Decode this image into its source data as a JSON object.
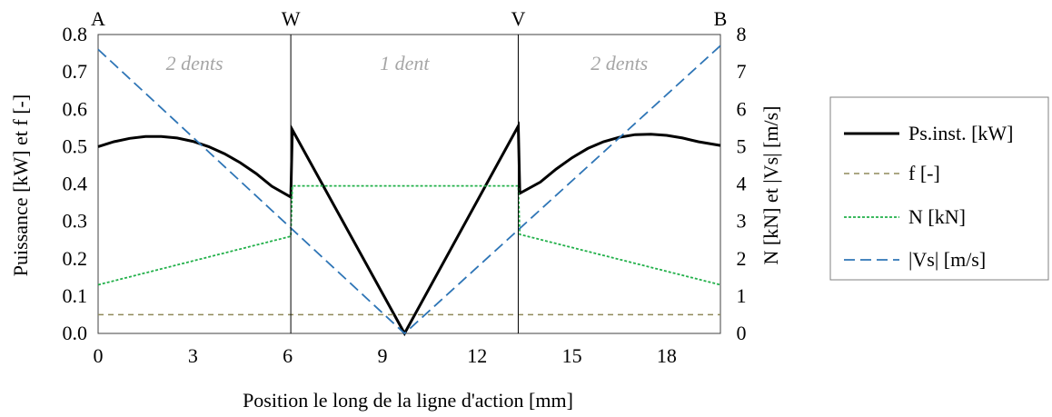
{
  "chart_data": {
    "type": "line",
    "xlabel": "Position le long de la ligne d'action [mm]",
    "ylabel_left": "Puissance [kW] et f [-]",
    "ylabel_right": "N [kN] et |Vs| [m/s]",
    "xlim": [
      0,
      19.7
    ],
    "ylim_left": [
      0,
      0.8
    ],
    "ylim_right": [
      0,
      8
    ],
    "x_ticks": [
      0,
      3,
      6,
      9,
      12,
      15,
      18
    ],
    "y_left_ticks": [
      "0.0",
      "0.1",
      "0.2",
      "0.3",
      "0.4",
      "0.5",
      "0.6",
      "0.7",
      "0.8"
    ],
    "y_right_ticks": [
      "0",
      "1",
      "2",
      "3",
      "4",
      "5",
      "6",
      "7",
      "8"
    ],
    "grid": false,
    "legend_position": "right",
    "markers": [
      {
        "label": "A",
        "x": 0
      },
      {
        "label": "W",
        "x": 6.1
      },
      {
        "label": "V",
        "x": 13.3
      },
      {
        "label": "B",
        "x": 19.7
      }
    ],
    "zones": [
      {
        "label": "2 dents",
        "x": 3.05
      },
      {
        "label": "1 dent",
        "x": 9.7
      },
      {
        "label": "2 dents",
        "x": 16.5
      }
    ],
    "series": [
      {
        "name": "Ps.inst. [kW]",
        "axis": "left",
        "color": "#000000",
        "style": "solid",
        "points": [
          [
            0,
            0.5
          ],
          [
            0.5,
            0.513
          ],
          [
            1,
            0.522
          ],
          [
            1.5,
            0.527
          ],
          [
            2,
            0.527
          ],
          [
            2.5,
            0.523
          ],
          [
            3,
            0.514
          ],
          [
            3.5,
            0.5
          ],
          [
            4,
            0.481
          ],
          [
            4.5,
            0.457
          ],
          [
            5,
            0.428
          ],
          [
            5.5,
            0.394
          ],
          [
            6.1,
            0.365
          ],
          [
            6.15,
            0.545
          ],
          [
            9.7,
            0.0
          ],
          [
            13.3,
            0.555
          ],
          [
            13.35,
            0.375
          ],
          [
            14,
            0.405
          ],
          [
            14.5,
            0.44
          ],
          [
            15,
            0.47
          ],
          [
            15.5,
            0.495
          ],
          [
            16,
            0.513
          ],
          [
            16.5,
            0.525
          ],
          [
            17,
            0.532
          ],
          [
            17.5,
            0.533
          ],
          [
            18,
            0.53
          ],
          [
            18.5,
            0.523
          ],
          [
            19,
            0.513
          ],
          [
            19.7,
            0.503
          ]
        ]
      },
      {
        "name": "f [-]",
        "axis": "left",
        "color": "#8f8a5a",
        "style": "dashed",
        "points": [
          [
            0,
            0.05
          ],
          [
            19.7,
            0.05
          ]
        ]
      },
      {
        "name": "N [kN]",
        "axis": "right",
        "color": "#22b04a",
        "style": "dotted",
        "points": [
          [
            0,
            1.3
          ],
          [
            6.1,
            2.6
          ],
          [
            6.15,
            3.95
          ],
          [
            13.3,
            3.95
          ],
          [
            13.35,
            2.65
          ],
          [
            19.7,
            1.3
          ]
        ]
      },
      {
        "name": "|Vs| [m/s]",
        "axis": "right",
        "color": "#2e75b6",
        "style": "longdash",
        "points": [
          [
            0,
            7.6
          ],
          [
            9.7,
            0.0
          ],
          [
            19.7,
            7.7
          ]
        ]
      }
    ]
  }
}
